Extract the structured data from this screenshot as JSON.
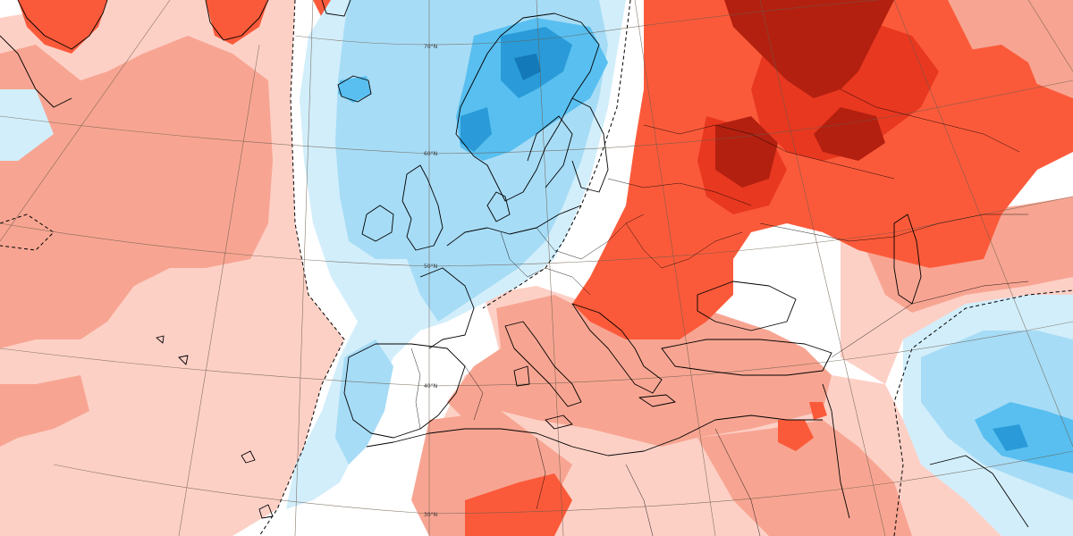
{
  "map": {
    "labels": {
      "lat70": "70°N",
      "lat60": "60°N",
      "lat50": "50°N",
      "lat40": "40°N",
      "lat30": "30°N"
    },
    "colors": {
      "background_white": "#ffffff",
      "warm_light": "#fdd0c6",
      "warm_mid": "#f7a592",
      "warm_strong": "#fb5a3a",
      "warm_darker": "#e83820",
      "warm_extreme": "#b32010",
      "cool_light": "#d2eefb",
      "cool_mid": "#a7dcf6",
      "cool_strong": "#58bff0",
      "cool_deep": "#2a9bd8",
      "cool_extreme": "#1479b8",
      "coastline": "#000000",
      "graticule": "#6a5a4a"
    }
  }
}
